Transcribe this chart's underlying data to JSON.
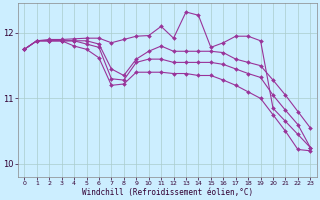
{
  "background_color": "#cceeff",
  "plot_bg_color": "#cceeff",
  "line_color": "#993399",
  "xlabel": "Windchill (Refroidissement éolien,°C)",
  "ylim": [
    9.8,
    12.45
  ],
  "xlim": [
    -0.5,
    23.5
  ],
  "yticks": [
    10,
    11,
    12
  ],
  "xticks": [
    0,
    1,
    2,
    3,
    4,
    5,
    6,
    7,
    8,
    9,
    10,
    11,
    12,
    13,
    14,
    15,
    16,
    17,
    18,
    19,
    20,
    21,
    22,
    23
  ],
  "series": [
    [
      11.75,
      11.88,
      11.9,
      11.9,
      11.91,
      11.92,
      11.92,
      11.85,
      11.9,
      11.95,
      11.96,
      12.1,
      11.92,
      12.32,
      12.27,
      11.78,
      11.85,
      11.95,
      11.95,
      11.88,
      10.85,
      10.65,
      10.45,
      10.25
    ],
    [
      11.75,
      11.88,
      11.88,
      11.88,
      11.88,
      11.88,
      11.83,
      11.45,
      11.35,
      11.6,
      11.72,
      11.8,
      11.72,
      11.72,
      11.72,
      11.72,
      11.7,
      11.6,
      11.55,
      11.5,
      11.28,
      11.05,
      10.8,
      10.55
    ],
    [
      11.75,
      11.88,
      11.88,
      11.88,
      11.88,
      11.83,
      11.78,
      11.3,
      11.28,
      11.55,
      11.6,
      11.6,
      11.55,
      11.55,
      11.55,
      11.55,
      11.52,
      11.45,
      11.38,
      11.32,
      11.05,
      10.82,
      10.6,
      10.25
    ],
    [
      11.75,
      11.88,
      11.88,
      11.88,
      11.8,
      11.75,
      11.62,
      11.2,
      11.22,
      11.4,
      11.4,
      11.4,
      11.38,
      11.38,
      11.35,
      11.35,
      11.28,
      11.2,
      11.1,
      11.0,
      10.75,
      10.5,
      10.22,
      10.2
    ]
  ],
  "markersize": 2.0,
  "linewidth": 0.8
}
